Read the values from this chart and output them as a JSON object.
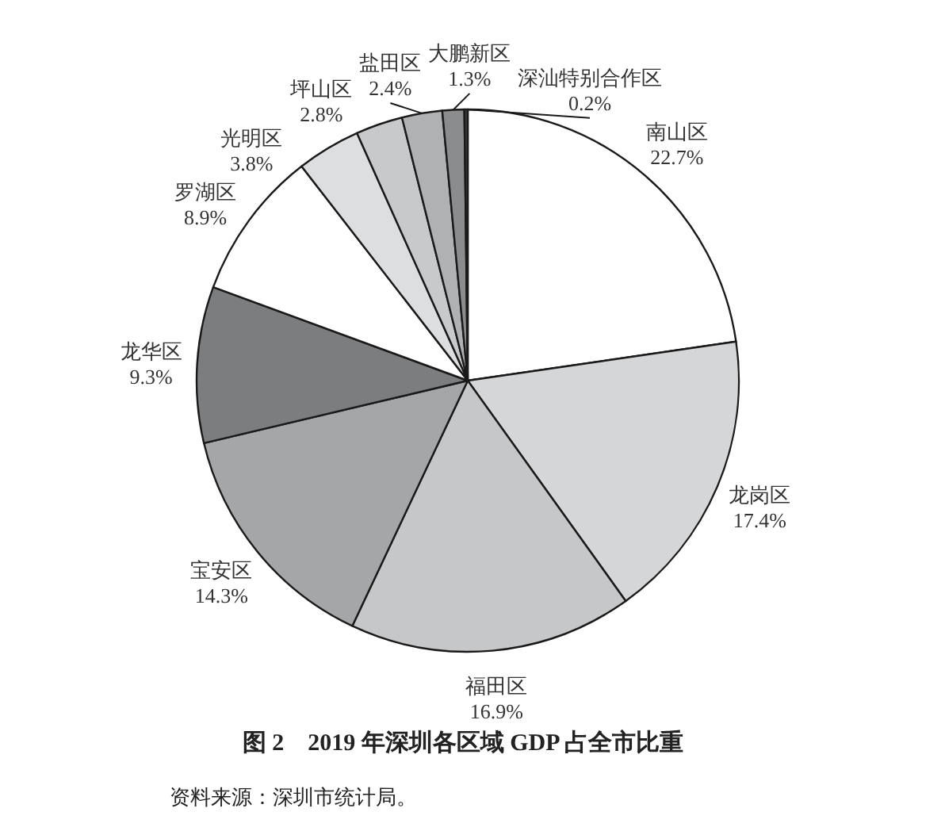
{
  "chart_data": {
    "type": "pie",
    "title": "图 2　2019 年深圳各区域 GDP 占全市比重",
    "annotations": [
      "资料来源：深圳市统计局。"
    ],
    "categories": [
      "南山区",
      "龙岗区",
      "福田区",
      "宝安区",
      "龙华区",
      "罗湖区",
      "光明区",
      "坪山区",
      "盐田区",
      "大鹏新区",
      "深汕特别合作区"
    ],
    "values": [
      22.7,
      17.4,
      16.9,
      14.3,
      9.3,
      8.9,
      3.8,
      2.8,
      2.4,
      1.3,
      0.2
    ],
    "value_labels": [
      "22.7%",
      "17.4%",
      "16.9%",
      "14.3%",
      "9.3%",
      "8.9%",
      "3.8%",
      "2.8%",
      "2.4%",
      "1.3%",
      "0.2%"
    ],
    "colors": [
      "#ffffff",
      "#d5d6d8",
      "#c6c7c9",
      "#a5a6a8",
      "#7c7d7f",
      "#ffffff",
      "#dddee0",
      "#c8c9cb",
      "#b0b1b3",
      "#8b8c8e",
      "#3c3c3c"
    ]
  }
}
